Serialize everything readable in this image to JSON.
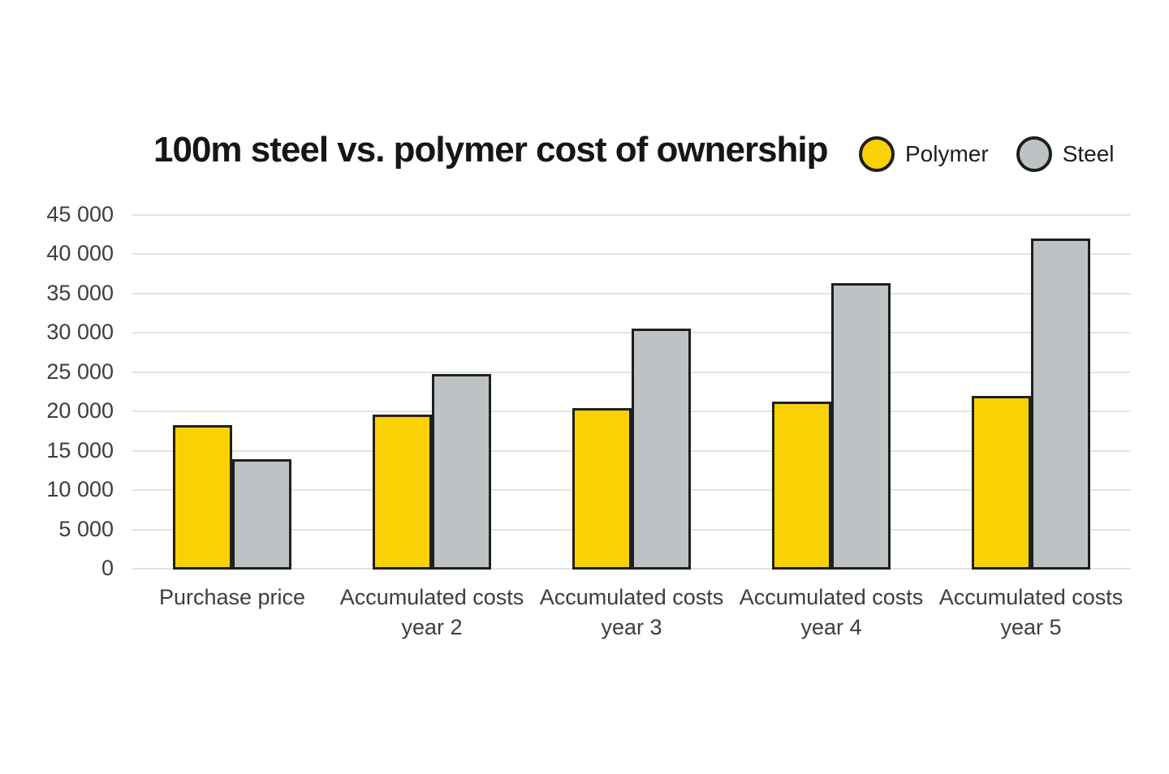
{
  "header": {
    "title": "100m steel vs. polymer cost of ownership"
  },
  "colors": {
    "polymer": "#fad105",
    "steel": "#bdc3c4",
    "bar_border": "#1f1f1d",
    "gridline": "#e3e3e3",
    "axis_text": "#3d3d3d",
    "title_text": "#161615",
    "background": "#ffffff"
  },
  "chart_data": {
    "type": "bar",
    "title": "100m steel vs. polymer cost of ownership",
    "categories": [
      "Purchase price",
      "Accumulated costs year 2",
      "Accumulated costs year 3",
      "Accumulated costs year 4",
      "Accumulated costs year 5"
    ],
    "series": [
      {
        "name": "Polymer",
        "color": "#fad105",
        "values": [
          18400,
          19700,
          20500,
          21400,
          22100
        ]
      },
      {
        "name": "Steel",
        "color": "#bdc3c4",
        "values": [
          14000,
          24900,
          30700,
          36400,
          42100
        ]
      }
    ],
    "xlabel": "",
    "ylabel": "",
    "ylim": [
      0,
      45000
    ],
    "ytick_step": 5000,
    "ytick_labels": [
      "0",
      "5 000",
      "10 000",
      "15 000",
      "20 000",
      "25 000",
      "30 000",
      "35 000",
      "40 000",
      "45 000"
    ],
    "grid": true,
    "legend_position": "top-right"
  }
}
